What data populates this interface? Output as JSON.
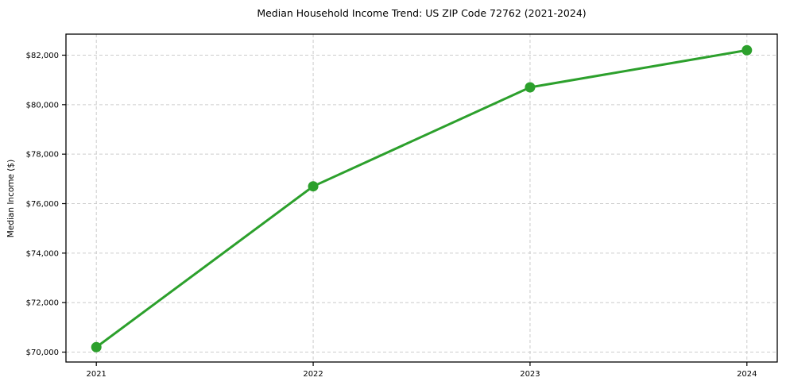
{
  "figure": {
    "background": "#ffffff"
  },
  "chart_data": {
    "type": "line",
    "title": "Median Household Income Trend: US ZIP Code 72762 (2021-2024)",
    "xlabel": "",
    "ylabel": "Median Income ($)",
    "x": [
      2021,
      2022,
      2023,
      2024
    ],
    "series": [
      {
        "name": "Median Household Income",
        "values": [
          70200,
          76700,
          80700,
          82200
        ],
        "color": "#2ca02c",
        "marker": "circle",
        "line_width": 3,
        "marker_size": 6.5
      }
    ],
    "xticks": [
      2021,
      2022,
      2023,
      2024
    ],
    "xtick_labels": [
      "2021",
      "2022",
      "2023",
      "2024"
    ],
    "yticks": [
      70000,
      72000,
      74000,
      76000,
      78000,
      80000,
      82000
    ],
    "ytick_labels": [
      "$70,000",
      "$72,000",
      "$74,000",
      "$76,000",
      "$78,000",
      "$80,000",
      "$82,000"
    ],
    "xlim": [
      2020.86,
      2024.14
    ],
    "ylim": [
      69600,
      82850
    ],
    "grid": true,
    "grid_style": "dashed",
    "grid_color": "#cccccc",
    "spine_color": "#000000",
    "tick_color": "#000000",
    "text_color": "#000000",
    "legend": "none"
  }
}
